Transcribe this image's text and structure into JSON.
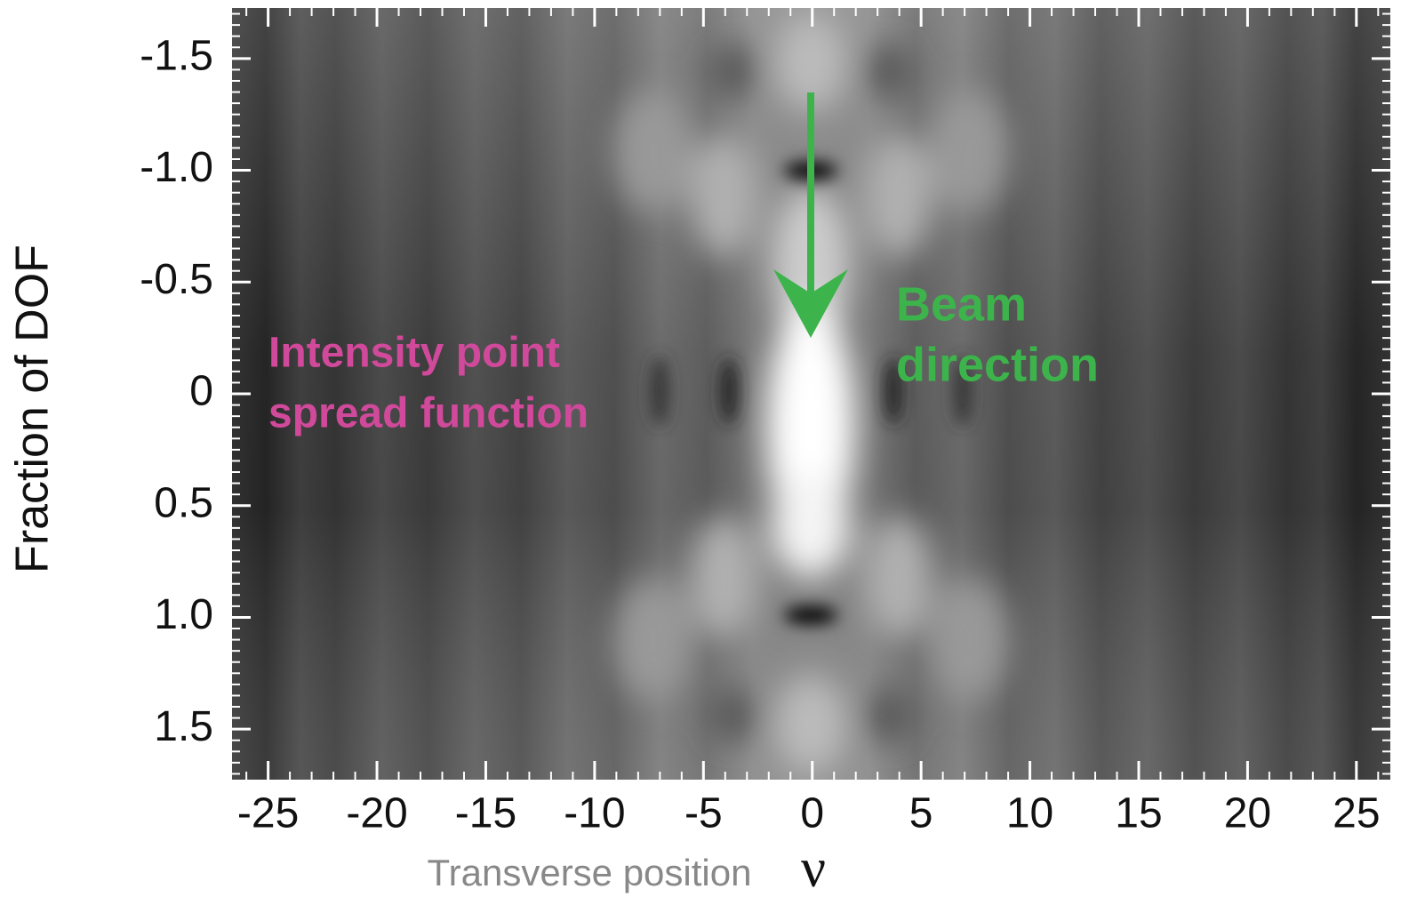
{
  "chart_data": {
    "type": "heatmap",
    "xlabel": "Transverse position",
    "xsymbol": "ν",
    "ylabel": "Fraction of DOF",
    "xlim": [
      -26.7,
      26.6
    ],
    "xticks": [
      -25,
      -20,
      -15,
      -10,
      -5,
      0,
      5,
      10,
      15,
      20,
      25
    ],
    "xminor": 1,
    "ylim": [
      1.73,
      -1.73
    ],
    "yticks": [
      -1.5,
      {
        "value": -1,
        "label": "-1.0"
      },
      -0.5,
      0,
      0.5,
      {
        "value": 1,
        "label": "1.0"
      },
      1.5
    ],
    "yminor": 0.05,
    "annotations": [
      {
        "lines": [
          "Intensity point",
          "spread function"
        ],
        "color": "#d0499a"
      },
      {
        "lines": [
          "Beam",
          "direction"
        ],
        "color": "#3cb44b"
      }
    ]
  }
}
